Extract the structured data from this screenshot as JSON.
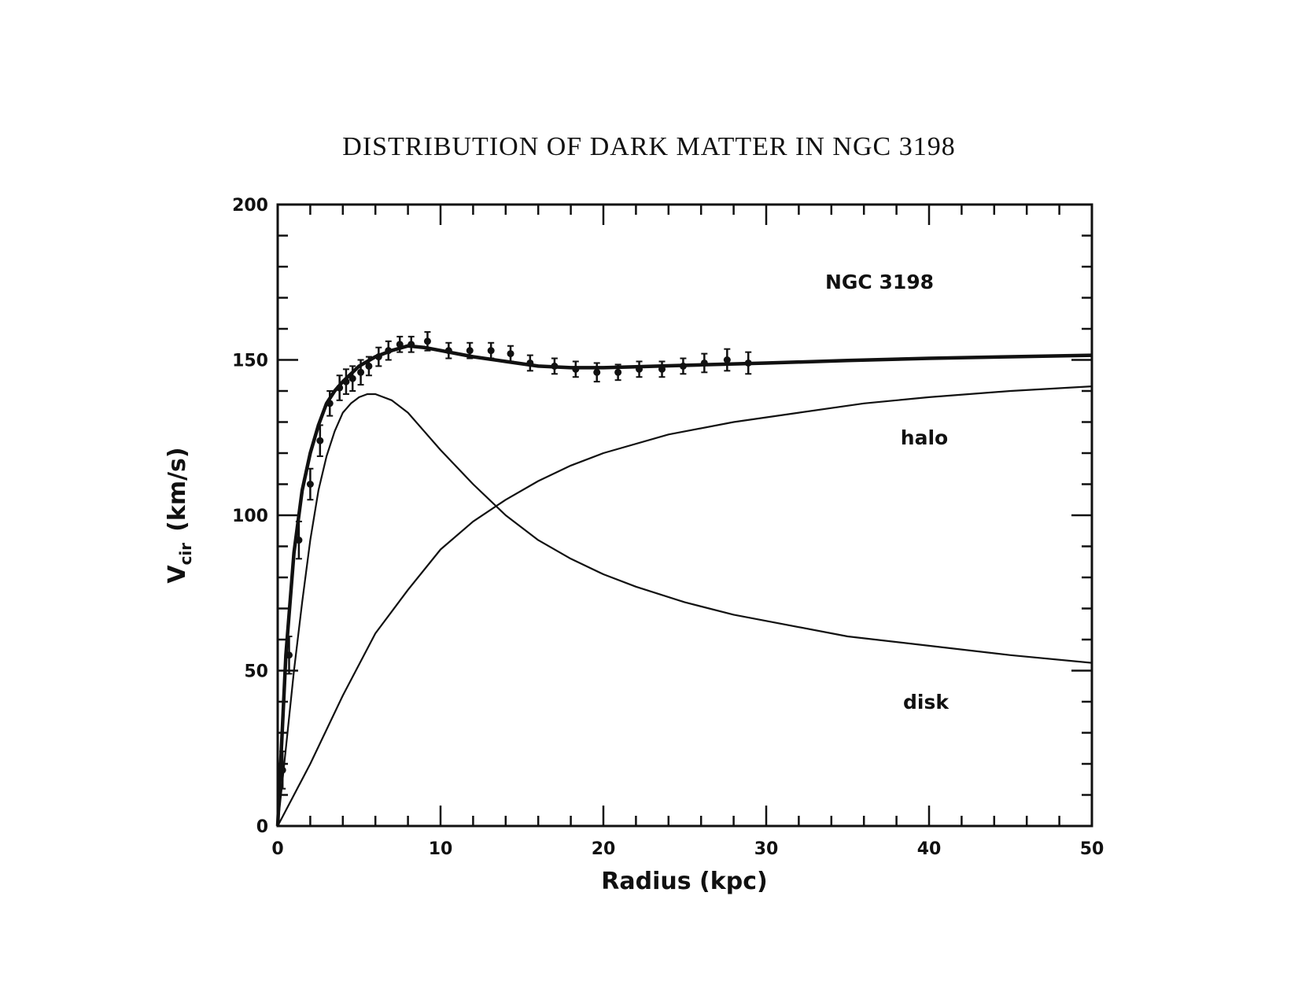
{
  "chart_data": {
    "type": "line",
    "title": "DISTRIBUTION OF DARK MATTER IN NGC 3198",
    "xlabel": "Radius (kpc)",
    "ylabel": "V",
    "ylabel_subscript": "cir",
    "ylabel_unit": "(km/s)",
    "xlim": [
      0,
      50
    ],
    "ylim": [
      0,
      200
    ],
    "xticks": [
      0,
      10,
      20,
      30,
      40,
      50
    ],
    "yticks": [
      0,
      50,
      100,
      150,
      200
    ],
    "grid": false,
    "annotations": [
      "NGC 3198",
      "halo",
      "disk"
    ],
    "series": [
      {
        "name": "",
        "style": "thick",
        "x": [
          0,
          0.5,
          1,
          1.5,
          2,
          2.5,
          3,
          3.5,
          4,
          5,
          6,
          7,
          8,
          9,
          10,
          12,
          14,
          16,
          18,
          20,
          22,
          24,
          26,
          28,
          30,
          35,
          40,
          45,
          50
        ],
        "y": [
          0,
          55,
          88,
          108,
          120,
          129,
          136,
          140,
          143,
          148,
          151,
          153,
          154.5,
          154,
          153,
          151,
          149.5,
          148,
          147.5,
          147.5,
          147.8,
          148.1,
          148.4,
          148.7,
          149,
          149.8,
          150.5,
          151,
          151.5
        ]
      },
      {
        "name": "halo",
        "style": "thin",
        "x": [
          0,
          2,
          4,
          6,
          8,
          10,
          12,
          14,
          16,
          18,
          20,
          24,
          28,
          32,
          36,
          40,
          45,
          50
        ],
        "y": [
          0,
          20,
          42,
          62,
          76,
          89,
          98,
          105,
          111,
          116,
          120,
          126,
          130,
          133,
          136,
          138,
          140,
          141.5
        ]
      },
      {
        "name": "disk",
        "style": "thin",
        "x": [
          0,
          0.5,
          1,
          1.5,
          2,
          2.5,
          3,
          3.5,
          4,
          4.5,
          5,
          5.5,
          6,
          7,
          8,
          9,
          10,
          12,
          14,
          16,
          18,
          20,
          22,
          25,
          28,
          30,
          35,
          40,
          45,
          50
        ],
        "y": [
          0,
          25,
          50,
          72,
          92,
          108,
          119,
          127,
          133,
          136,
          138,
          139,
          139,
          137,
          133,
          127,
          121,
          110,
          100,
          92,
          86,
          81,
          77,
          72,
          68,
          66,
          61,
          58,
          55,
          52.5
        ]
      }
    ],
    "observed": {
      "name": "NGC 3198",
      "x": [
        0.3,
        0.7,
        1.3,
        2,
        2.6,
        3.2,
        3.8,
        4.2,
        4.6,
        5.1,
        5.6,
        6.2,
        6.8,
        7.5,
        8.2,
        9.2,
        10.5,
        11.8,
        13.1,
        14.3,
        15.5,
        17,
        18.3,
        19.6,
        20.9,
        22.2,
        23.6,
        24.9,
        26.2,
        27.6,
        28.9
      ],
      "y": [
        18,
        55,
        92,
        110,
        124,
        136,
        141,
        143,
        144,
        146,
        148,
        151,
        153,
        155,
        155,
        156,
        153,
        153,
        153,
        152,
        149,
        148,
        147,
        146,
        146,
        147,
        147,
        148,
        149,
        150,
        149
      ],
      "err": [
        6,
        6,
        6,
        5,
        5,
        4,
        4,
        4,
        4,
        4,
        3,
        3,
        3,
        2.5,
        2.5,
        3,
        2.5,
        2.5,
        2.5,
        2.5,
        2.5,
        2.5,
        2.5,
        3,
        2.5,
        2.5,
        2.5,
        2.5,
        3,
        3.5,
        3.5
      ]
    }
  }
}
